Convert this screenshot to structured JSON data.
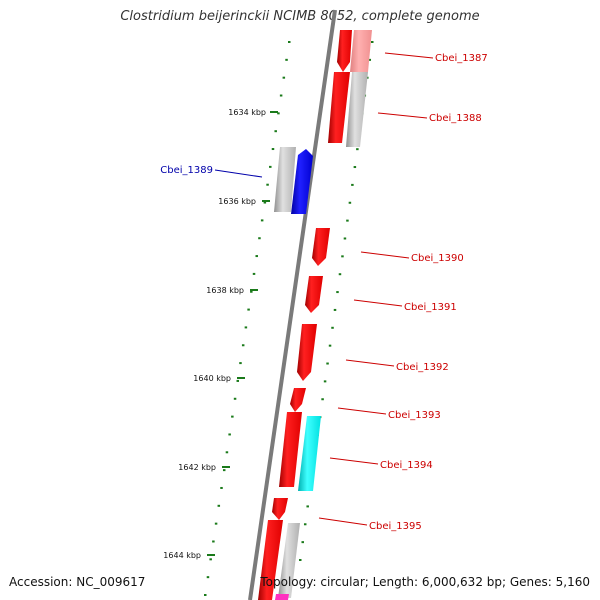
{
  "title": "Clostridium beijerinckii NCIMB 8052, complete genome",
  "accession": "Accession: NC_009617",
  "summary": "Topology: circular; Length: 6,000,632 bp; Genes: 5,160",
  "kbp_labels": [
    "1634 kbp",
    "1636 kbp",
    "1638 kbp",
    "1640 kbp",
    "1642 kbp",
    "1644 kbp"
  ],
  "genes": [
    {
      "label": "Cbei_1387",
      "color": "#cc0000"
    },
    {
      "label": "Cbei_1388",
      "color": "#cc0000"
    },
    {
      "label": "Cbei_1389",
      "color": "#0000aa"
    },
    {
      "label": "Cbei_1390",
      "color": "#cc0000"
    },
    {
      "label": "Cbei_1391",
      "color": "#cc0000"
    },
    {
      "label": "Cbei_1392",
      "color": "#cc0000"
    },
    {
      "label": "Cbei_1393",
      "color": "#cc0000"
    },
    {
      "label": "Cbei_1394",
      "color": "#cc0000"
    },
    {
      "label": "Cbei_1395",
      "color": "#cc0000"
    }
  ],
  "colors": {
    "backbone": "#808080",
    "forward": "#ff0000",
    "highlight_blue": "#0000ff",
    "highlight_cyan": "#00ffff",
    "tick": "#1a7a1a"
  }
}
